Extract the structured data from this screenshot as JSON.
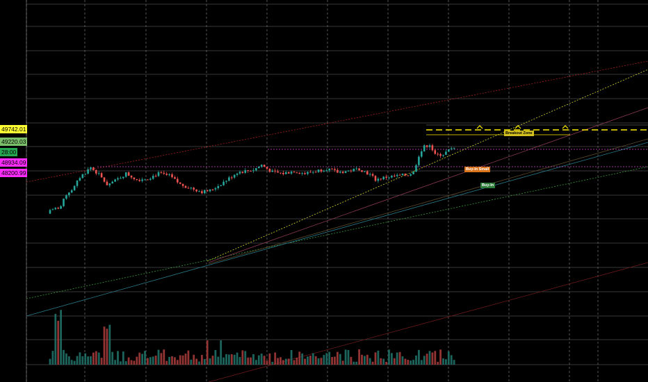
{
  "theme": {
    "background": "#000000",
    "grid": "#6f6f6f",
    "candle_up": "#26a69a",
    "candle_down": "#ef5350",
    "resistance": "#ffee00"
  },
  "price_tags": [
    {
      "label": "49742.01",
      "bg": "#ffff33",
      "fg": "#000000"
    },
    {
      "label": "49220.03",
      "bg": "#7bbf6a",
      "fg": "#000000"
    },
    {
      "label": "28:00",
      "bg": "#26a651",
      "fg": "#000000"
    },
    {
      "label": "48934.09",
      "bg": "#ff2cff",
      "fg": "#000000"
    },
    {
      "label": "48200.99",
      "bg": "#ff2cff",
      "fg": "#000000"
    }
  ],
  "annotations": [
    {
      "label": "Breakout Zone",
      "bg": "#d4c01f",
      "fg": "#000000"
    },
    {
      "label": "Buy-In Small",
      "bg": "#d9731c",
      "fg": "#ffffff"
    },
    {
      "label": "Buy-In",
      "bg": "#2f7d3a",
      "fg": "#ffffff"
    }
  ],
  "chart_data": {
    "type": "candlestick",
    "title": "",
    "xlabel": "",
    "ylabel": "",
    "grid": true,
    "price_lines": [
      49742.01,
      49220.03,
      48934.09,
      48200.99
    ],
    "keypoints": [
      {
        "i": 0,
        "price": 46450
      },
      {
        "i": 4,
        "price": 46600
      },
      {
        "i": 6,
        "price": 47100
      },
      {
        "i": 9,
        "price": 47400
      },
      {
        "i": 11,
        "price": 47800
      },
      {
        "i": 15,
        "price": 48200
      },
      {
        "i": 18,
        "price": 47900
      },
      {
        "i": 21,
        "price": 47500
      },
      {
        "i": 24,
        "price": 47650
      },
      {
        "i": 28,
        "price": 47950
      },
      {
        "i": 32,
        "price": 47700
      },
      {
        "i": 36,
        "price": 47750
      },
      {
        "i": 40,
        "price": 47950
      },
      {
        "i": 44,
        "price": 47850
      },
      {
        "i": 48,
        "price": 47500
      },
      {
        "i": 52,
        "price": 47350
      },
      {
        "i": 56,
        "price": 47200
      },
      {
        "i": 59,
        "price": 47250
      },
      {
        "i": 62,
        "price": 47450
      },
      {
        "i": 66,
        "price": 47750
      },
      {
        "i": 69,
        "price": 48000
      },
      {
        "i": 72,
        "price": 48050
      },
      {
        "i": 75,
        "price": 48100
      },
      {
        "i": 78,
        "price": 48300
      },
      {
        "i": 82,
        "price": 48000
      },
      {
        "i": 86,
        "price": 47950
      },
      {
        "i": 90,
        "price": 48050
      },
      {
        "i": 94,
        "price": 47950
      },
      {
        "i": 98,
        "price": 48050
      },
      {
        "i": 102,
        "price": 48150
      },
      {
        "i": 106,
        "price": 48000
      },
      {
        "i": 110,
        "price": 48050
      },
      {
        "i": 114,
        "price": 48150
      },
      {
        "i": 118,
        "price": 47900
      },
      {
        "i": 120,
        "price": 47700
      },
      {
        "i": 124,
        "price": 47800
      },
      {
        "i": 128,
        "price": 47850
      },
      {
        "i": 132,
        "price": 47900
      },
      {
        "i": 134,
        "price": 48000
      },
      {
        "i": 136,
        "price": 48700
      },
      {
        "i": 138,
        "price": 49050
      },
      {
        "i": 140,
        "price": 49150
      },
      {
        "i": 142,
        "price": 48700
      },
      {
        "i": 145,
        "price": 48750
      },
      {
        "i": 147,
        "price": 48900
      },
      {
        "i": 149,
        "price": 48980
      }
    ]
  }
}
